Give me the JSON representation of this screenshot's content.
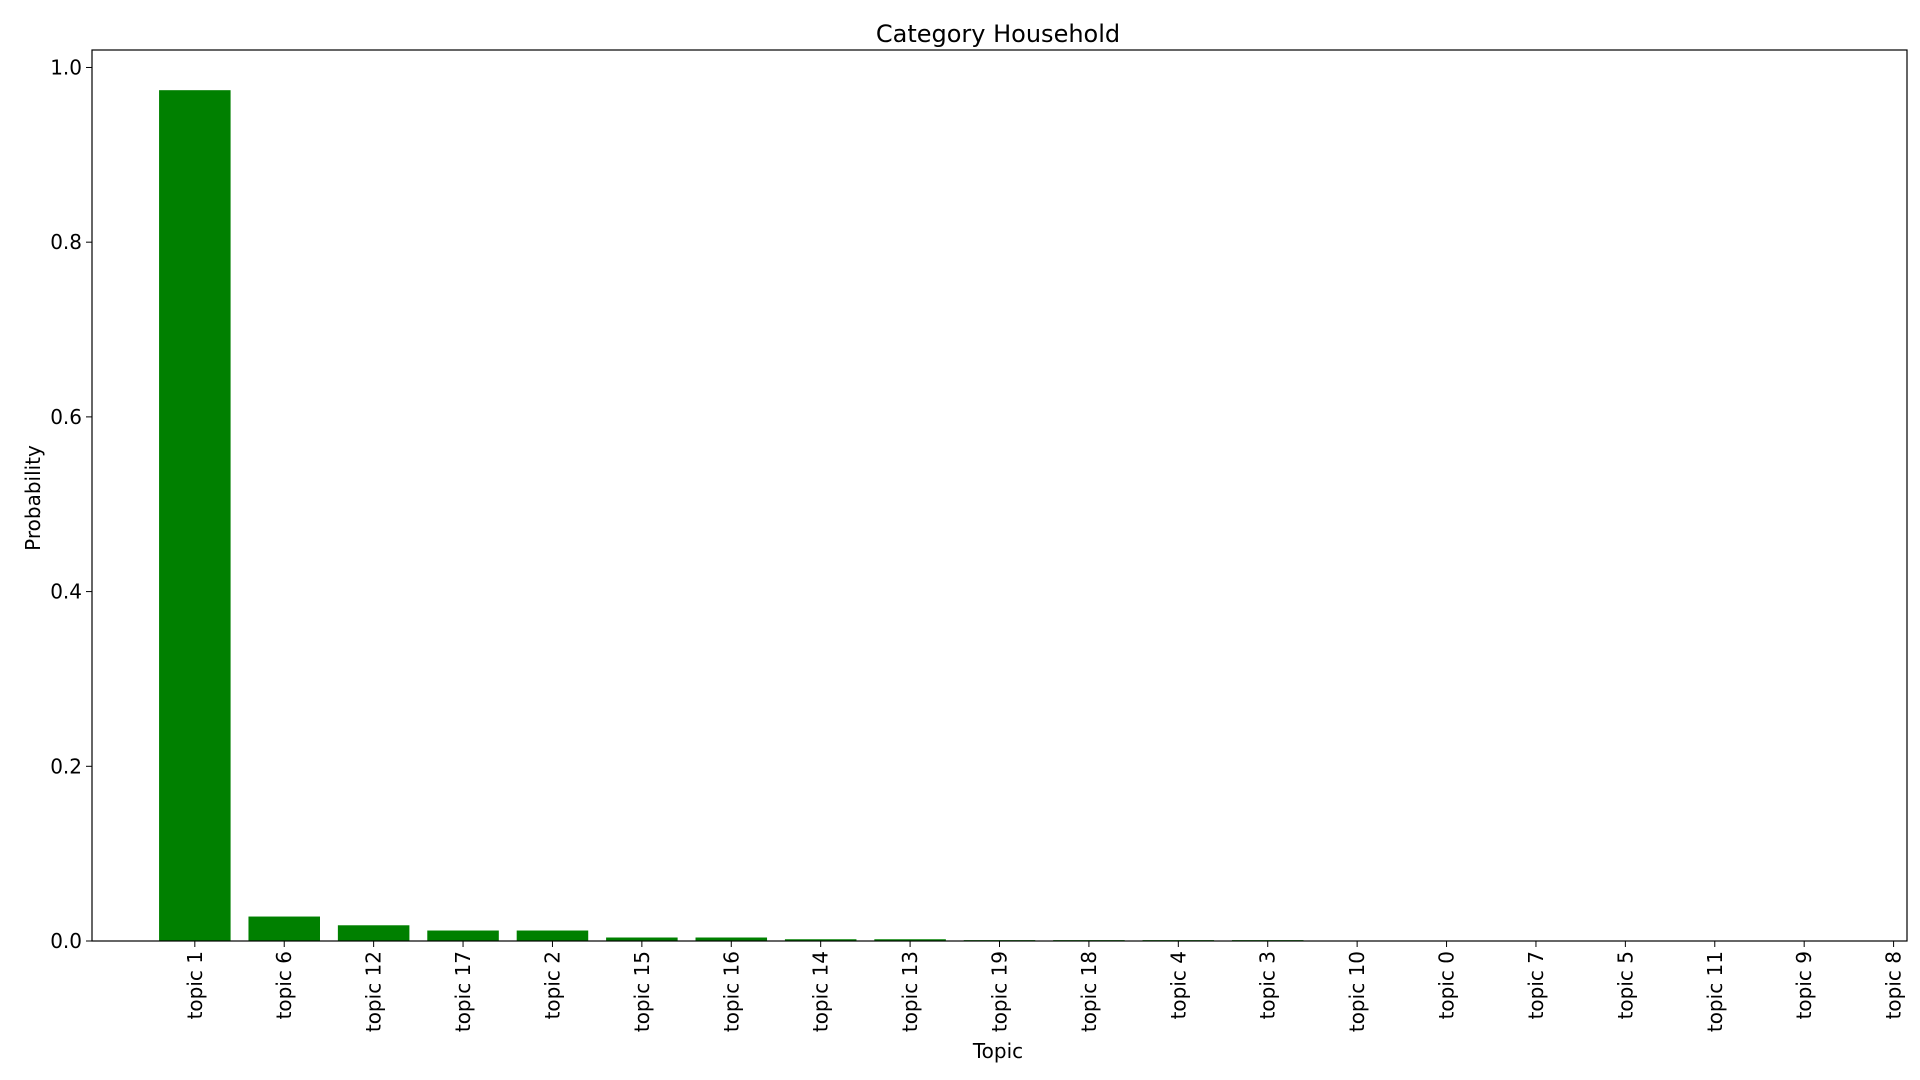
{
  "chart_data": {
    "type": "bar",
    "title": "Category Household",
    "xlabel": "Topic",
    "ylabel": "Probability",
    "ylim": [
      0,
      1.02
    ],
    "yticks": [
      "0.0",
      "0.2",
      "0.4",
      "0.6",
      "0.8",
      "1.0"
    ],
    "grid": false,
    "bar_color": "#008000",
    "categories": [
      "topic 1",
      "topic 6",
      "topic 12",
      "topic 17",
      "topic 2",
      "topic 15",
      "topic 16",
      "topic 14",
      "topic 13",
      "topic 19",
      "topic 18",
      "topic 4",
      "topic 3",
      "topic 10",
      "topic 0",
      "topic 7",
      "topic 5",
      "topic 11",
      "topic 9",
      "topic 8"
    ],
    "values": [
      0.974,
      0.028,
      0.018,
      0.012,
      0.012,
      0.004,
      0.004,
      0.002,
      0.002,
      0.001,
      0.001,
      0.001,
      0.001,
      0.0,
      0.0,
      0.0,
      0.0,
      0.0,
      0.0,
      0.0
    ]
  }
}
